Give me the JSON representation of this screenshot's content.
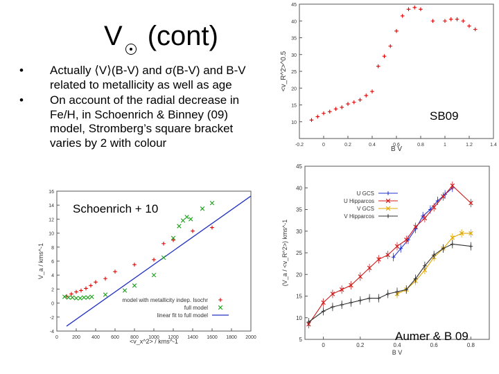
{
  "slide": {
    "title": "V",
    "title_symbol": "sun-symbol",
    "title_suffix": "(cont)",
    "bullets": [
      "Actually ⟨V⟩(B-V) and σ(B-V) and B-V related to metallicity as well as age",
      "On account of the radial decrease in Fe/H, in Schoenrich & Binney (09) model, Stromberg’s square bracket varies by 2 with colour"
    ],
    "bullet_char": "•",
    "labels": {
      "sb09": "SB09",
      "schoenrich": "Schoenrich + 10",
      "aumer": "Aumer & B 09"
    }
  },
  "chart_data": [
    {
      "name": "sb09-plot",
      "type": "scatter",
      "xlabel": "B V",
      "ylabel": "<v_R^2>^0.5",
      "xlim": [
        -0.2,
        1.4
      ],
      "ylim": [
        5,
        45
      ],
      "xticks": [
        "-0.2",
        "0",
        "0.2",
        "0.4",
        "0.6",
        "0.8",
        "1",
        "1.2",
        "1.4"
      ],
      "yticks": [
        "10",
        "15",
        "20",
        "25",
        "30",
        "35",
        "40",
        "45"
      ],
      "series": [
        {
          "name": "SB09",
          "color": "#e00000",
          "x": [
            -0.1,
            -0.05,
            0.0,
            0.05,
            0.1,
            0.15,
            0.2,
            0.25,
            0.3,
            0.35,
            0.4,
            0.45,
            0.5,
            0.55,
            0.6,
            0.65,
            0.7,
            0.75,
            0.8,
            0.9,
            1.0,
            1.05,
            1.1,
            1.15,
            1.2,
            1.25
          ],
          "y": [
            10.5,
            11.5,
            12.5,
            13.0,
            13.8,
            14.3,
            15.3,
            15.8,
            16.5,
            17.8,
            19.0,
            26.5,
            29.5,
            32.5,
            37.0,
            41.5,
            43.5,
            44.0,
            43.5,
            40.0,
            40.0,
            40.5,
            40.5,
            40.0,
            38.5,
            37.5
          ]
        }
      ]
    },
    {
      "name": "schoenrich-plot",
      "type": "scatter",
      "xlabel": "<v_x^2> / kms^-1",
      "ylabel": "V_a / kms^-1",
      "xlim": [
        0,
        2000
      ],
      "ylim": [
        -4,
        16
      ],
      "xticks": [
        "0",
        "200",
        "400",
        "600",
        "800",
        "1000",
        "1200",
        "1400",
        "1600",
        "1800",
        "2000"
      ],
      "yticks": [
        "-4",
        "-2",
        "0",
        "2",
        "4",
        "6",
        "8",
        "10",
        "12",
        "14",
        "16"
      ],
      "legend": [
        "model with metallicity indep. Isochr",
        "full model",
        "linear fit to full model"
      ],
      "series": [
        {
          "name": "model with metallicity indep. Isochr",
          "color": "#e00000",
          "x": [
            100,
            150,
            200,
            250,
            300,
            350,
            400,
            500,
            600,
            800,
            1000,
            1100,
            1200,
            1400,
            1600
          ],
          "y": [
            1.0,
            1.3,
            1.6,
            1.8,
            2.1,
            2.5,
            3.0,
            3.5,
            4.5,
            5.5,
            6.2,
            8.5,
            9.0,
            10.3,
            10.8
          ]
        },
        {
          "name": "full model",
          "color": "#18a018",
          "x": [
            80,
            120,
            160,
            200,
            240,
            280,
            320,
            360,
            500,
            700,
            800,
            1000,
            1100,
            1200,
            1260,
            1300,
            1340,
            1380,
            1500,
            1600
          ],
          "y": [
            0.9,
            0.8,
            0.8,
            0.7,
            0.7,
            0.8,
            0.8,
            0.9,
            1.2,
            1.8,
            2.5,
            4.0,
            6.5,
            9.3,
            11.0,
            11.8,
            12.3,
            12.0,
            13.5,
            14.3
          ]
        }
      ],
      "fit": {
        "name": "linear fit to full model",
        "color": "#2030c0",
        "x": [
          100,
          2000
        ],
        "y": [
          -3.3,
          15.3
        ]
      }
    },
    {
      "name": "aumer-plot",
      "type": "line",
      "xlabel": "B V",
      "ylabel": "(V_a / <v_R^2>) kms^-1",
      "xlim": [
        -0.1,
        0.9
      ],
      "ylim": [
        5,
        45
      ],
      "xticks": [
        "0",
        "0.2",
        "0.4",
        "0.6",
        "0.8"
      ],
      "yticks": [
        "5",
        "10",
        "15",
        "20",
        "25",
        "30",
        "35",
        "40",
        "45"
      ],
      "legend": [
        "U GCS",
        "U Hipparcos",
        "V GCS",
        "V Hipparcos"
      ],
      "series": [
        {
          "name": "U GCS",
          "color": "#2030d0",
          "x": [
            0.38,
            0.42,
            0.46,
            0.5,
            0.54,
            0.58,
            0.62,
            0.66,
            0.7
          ],
          "y": [
            24.0,
            26.0,
            28.0,
            30.5,
            33.5,
            35.0,
            37.0,
            38.5,
            40.0
          ]
        },
        {
          "name": "U Hipparcos",
          "color": "#d01818",
          "x": [
            -0.08,
            0.0,
            0.05,
            0.1,
            0.15,
            0.2,
            0.25,
            0.3,
            0.35,
            0.4,
            0.45,
            0.5,
            0.55,
            0.6,
            0.65,
            0.7,
            0.8
          ],
          "y": [
            8.5,
            13.5,
            15.5,
            16.5,
            17.5,
            19.5,
            21.5,
            23.5,
            24.5,
            26.5,
            28.0,
            31.0,
            33.0,
            35.5,
            38.0,
            40.5,
            36.5
          ]
        },
        {
          "name": "V GCS",
          "color": "#e0a800",
          "x": [
            0.4,
            0.45,
            0.5,
            0.55,
            0.6,
            0.65,
            0.7,
            0.75,
            0.8
          ],
          "y": [
            15.5,
            16.5,
            18.5,
            21.0,
            24.0,
            26.0,
            28.5,
            29.5,
            29.5
          ]
        },
        {
          "name": "V Hipparcos",
          "color": "#303030",
          "x": [
            -0.08,
            0.0,
            0.05,
            0.1,
            0.15,
            0.2,
            0.25,
            0.3,
            0.35,
            0.4,
            0.45,
            0.5,
            0.55,
            0.6,
            0.65,
            0.7,
            0.8
          ],
          "y": [
            9.0,
            11.5,
            12.5,
            13.0,
            13.5,
            14.0,
            14.5,
            14.5,
            15.5,
            16.0,
            16.5,
            19.0,
            22.0,
            24.5,
            26.0,
            27.0,
            26.5
          ]
        }
      ]
    }
  ]
}
